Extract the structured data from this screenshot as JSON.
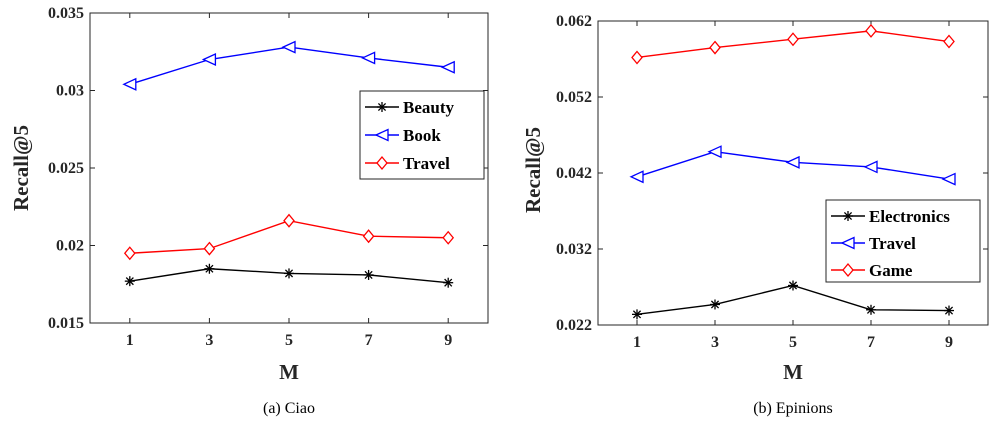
{
  "chart_data": [
    {
      "type": "line",
      "caption": "(a)  Ciao",
      "xlabel": "M",
      "ylabel": "Recall@5",
      "x": [
        1,
        3,
        5,
        7,
        9
      ],
      "xticks": [
        "1",
        "3",
        "5",
        "7",
        "9"
      ],
      "xlim": [
        0,
        10
      ],
      "ylim": [
        0.015,
        0.035
      ],
      "yticks": [
        "0.015",
        "0.02",
        "0.025",
        "0.03",
        "0.035"
      ],
      "ytick_values": [
        0.015,
        0.02,
        0.025,
        0.03,
        0.035
      ],
      "legend_position": "center-right",
      "series": [
        {
          "name": "Beauty",
          "color": "#000000",
          "marker": "asterisk",
          "values": [
            0.0177,
            0.0185,
            0.0182,
            0.0181,
            0.0176
          ]
        },
        {
          "name": "Book",
          "color": "#0000ff",
          "marker": "triangle-left",
          "values": [
            0.0304,
            0.032,
            0.0328,
            0.0321,
            0.0315
          ]
        },
        {
          "name": "Travel",
          "color": "#ff0000",
          "marker": "diamond",
          "values": [
            0.0195,
            0.0198,
            0.0216,
            0.0206,
            0.0205
          ]
        }
      ]
    },
    {
      "type": "line",
      "caption": "(b)  Epinions",
      "xlabel": "M",
      "ylabel": "Recall@5",
      "x": [
        1,
        3,
        5,
        7,
        9
      ],
      "xticks": [
        "1",
        "3",
        "5",
        "7",
        "9"
      ],
      "xlim": [
        0,
        10
      ],
      "ylim": [
        0.022,
        0.062
      ],
      "yticks": [
        "0.022",
        "0.032",
        "0.042",
        "0.052",
        "0.062"
      ],
      "ytick_values": [
        0.022,
        0.032,
        0.042,
        0.052,
        0.062
      ],
      "legend_position": "lower-right",
      "series": [
        {
          "name": "Electronics",
          "color": "#000000",
          "marker": "asterisk",
          "values": [
            0.0234,
            0.0247,
            0.0272,
            0.024,
            0.0239
          ]
        },
        {
          "name": "Travel",
          "color": "#0000ff",
          "marker": "triangle-left",
          "values": [
            0.0415,
            0.0448,
            0.0434,
            0.0428,
            0.0412
          ]
        },
        {
          "name": "Game",
          "color": "#ff0000",
          "marker": "diamond",
          "values": [
            0.0572,
            0.0585,
            0.0596,
            0.0607,
            0.0593
          ]
        }
      ]
    }
  ]
}
